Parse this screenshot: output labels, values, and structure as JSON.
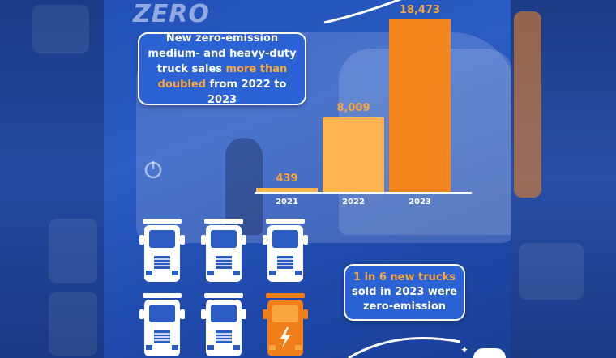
{
  "infographic": {
    "callout_text_1": "New zero-emission medium- and heavy-duty truck sales ",
    "callout_highlight": "more than doubled",
    "callout_text_2": " from 2022 to 2023",
    "share_line_1": "1 in 6 new trucks",
    "share_line_2": "sold in 2023 were",
    "share_line_3": "zero-emission",
    "logo": "ZERO",
    "colors": {
      "background": "#2150b8",
      "highlight_orange": "#f7a53c",
      "bar_light": "#fbb451",
      "bar_dark": "#f5861f",
      "truck_white": "#ffffff",
      "truck_orange": "#f07f1a"
    },
    "truck_icons": {
      "total": 6,
      "highlighted": 1,
      "icon": "semi-truck-icon",
      "highlight_icon": "electric-bolt-icon"
    }
  },
  "chart_data": {
    "type": "bar",
    "categories": [
      "2021",
      "2022",
      "2023"
    ],
    "values": [
      439,
      8009,
      18473
    ],
    "value_labels": [
      "439",
      "8,009",
      "18,473"
    ],
    "title": "",
    "xlabel": "",
    "ylabel": "",
    "ylim": [
      0,
      19500
    ],
    "grid": false,
    "bar_colors": [
      "#fbb451",
      "#fbb451",
      "#f5861f"
    ],
    "value_label_colors": [
      "#f7a53c",
      "#f7a53c",
      "#f7a53c"
    ]
  }
}
